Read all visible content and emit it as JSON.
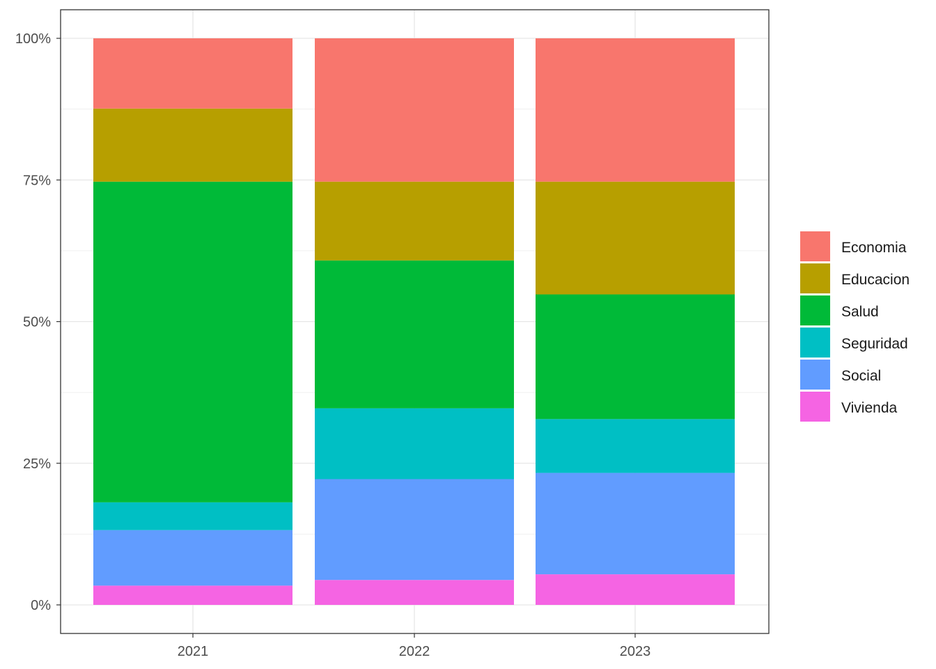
{
  "chart_data": {
    "type": "bar",
    "stacked": true,
    "normalized": true,
    "title": "",
    "xlabel": "",
    "ylabel": "",
    "categories": [
      "2021",
      "2022",
      "2023"
    ],
    "ylim": [
      0,
      1
    ],
    "y_ticks": [
      "0%",
      "25%",
      "50%",
      "75%",
      "100%"
    ],
    "grid": true,
    "legend_position": "right",
    "series": [
      {
        "name": "Vivienda",
        "color": "#F564E3",
        "values": [
          0.034,
          0.044,
          0.054
        ]
      },
      {
        "name": "Social",
        "color": "#619CFF",
        "values": [
          0.098,
          0.178,
          0.179
        ]
      },
      {
        "name": "Seguridad",
        "color": "#00BFC4",
        "values": [
          0.049,
          0.125,
          0.095
        ]
      },
      {
        "name": "Salud",
        "color": "#00BA38",
        "values": [
          0.566,
          0.261,
          0.22
        ]
      },
      {
        "name": "Educacion",
        "color": "#B79F00",
        "values": [
          0.129,
          0.139,
          0.199
        ]
      },
      {
        "name": "Economia",
        "color": "#F8766D",
        "values": [
          0.124,
          0.253,
          0.253
        ]
      }
    ]
  },
  "legend_order": [
    "Economia",
    "Educacion",
    "Salud",
    "Seguridad",
    "Social",
    "Vivienda"
  ]
}
